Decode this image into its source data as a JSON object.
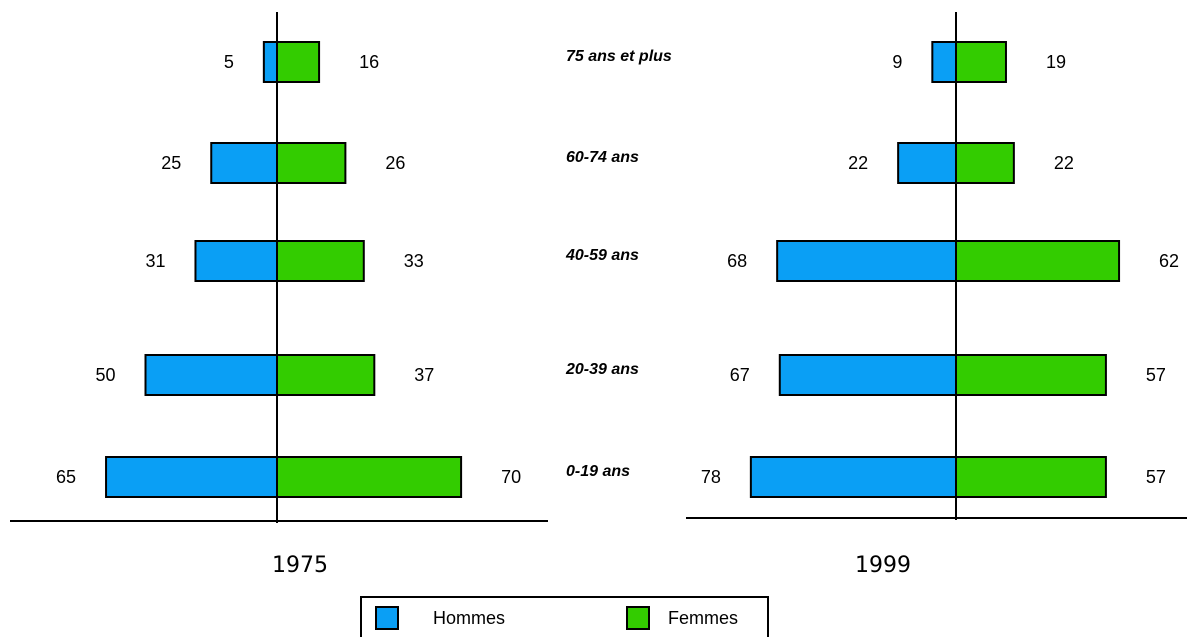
{
  "chart_data": {
    "type": "bar",
    "categories": [
      "75 ans et plus",
      "60-74 ans",
      "40-59 ans",
      "20-39 ans",
      "0-19 ans"
    ],
    "series": [
      {
        "name": "Hommes",
        "color": "#0a9ff5"
      },
      {
        "name": "Femmes",
        "color": "#33cc00"
      }
    ],
    "panels": [
      {
        "title": "1975",
        "values": [
          [
            5,
            25,
            31,
            50,
            65
          ],
          [
            16,
            26,
            33,
            37,
            70
          ]
        ]
      },
      {
        "title": "1999",
        "values": [
          [
            9,
            22,
            68,
            67,
            78
          ],
          [
            19,
            22,
            62,
            57,
            57
          ]
        ]
      }
    ]
  }
}
